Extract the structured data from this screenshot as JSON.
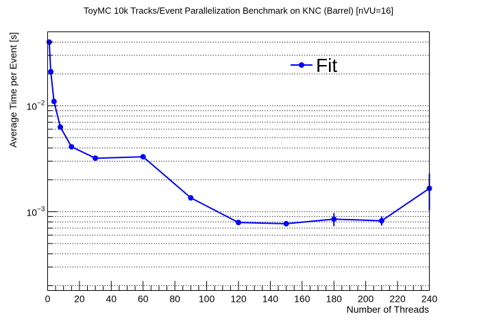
{
  "chart_data": {
    "type": "line",
    "title": "ToyMC 10k Tracks/Event Parallelization Benchmark on KNC (Barrel) [nVU=16]",
    "xlabel": "Number of Threads",
    "ylabel": "Average Time per Event [s]",
    "xlim": [
      0,
      240
    ],
    "ylim": [
      0.00018,
      0.05
    ],
    "yscale": "log",
    "grid": "horizontal",
    "legend_position": "top-right",
    "x_ticks": [
      0,
      20,
      40,
      60,
      80,
      100,
      120,
      140,
      160,
      180,
      200,
      220,
      240
    ],
    "y_tick_labels": [
      {
        "value": 0.01,
        "base": "10",
        "exp": "−2"
      },
      {
        "value": 0.001,
        "base": "10",
        "exp": "−3"
      }
    ],
    "series": [
      {
        "name": "Fit",
        "color": "#0000ff",
        "x": [
          1,
          2,
          4,
          8,
          15,
          30,
          60,
          90,
          120,
          150,
          180,
          210,
          240
        ],
        "y": [
          0.04,
          0.021,
          0.011,
          0.0063,
          0.0041,
          0.0032,
          0.0033,
          0.00135,
          0.00079,
          0.00077,
          0.00085,
          0.00082,
          0.00166
        ],
        "yerr": [
          0,
          0,
          0,
          0,
          0,
          0,
          0,
          0,
          2e-05,
          2e-05,
          0.00012,
          8e-05,
          0.00063
        ]
      }
    ]
  }
}
